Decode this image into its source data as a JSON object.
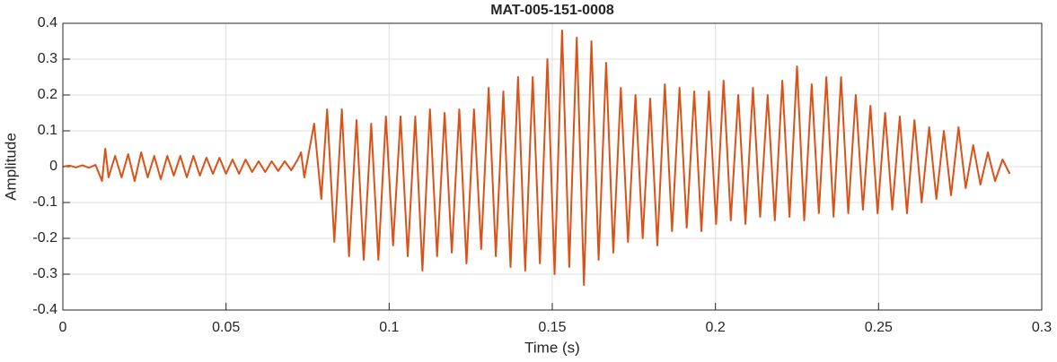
{
  "chart_data": {
    "type": "line",
    "title": "MAT-005-151-0008",
    "x_label": "Time (s)",
    "y_label": "Amplitude",
    "xlim": [
      0,
      0.3
    ],
    "xticks": [
      0,
      0.05,
      0.1,
      0.15,
      0.2,
      0.25,
      0.3
    ],
    "ylim": [
      -0.4,
      0.4
    ],
    "yticks": [
      -0.4,
      -0.3,
      -0.2,
      -0.1,
      0,
      0.1,
      0.2,
      0.3,
      0.4
    ],
    "grid": true,
    "series": [
      {
        "color": "#d95319",
        "x": [
          0,
          0.002,
          0.004,
          0.006,
          0.008,
          0.01,
          0.012,
          0.013,
          0.014,
          0.016,
          0.018,
          0.02,
          0.022,
          0.024,
          0.026,
          0.028,
          0.03,
          0.032,
          0.034,
          0.036,
          0.038,
          0.04,
          0.042,
          0.044,
          0.046,
          0.048,
          0.05,
          0.052,
          0.054,
          0.056,
          0.058,
          0.06,
          0.062,
          0.064,
          0.066,
          0.068,
          0.07,
          0.072,
          0.073,
          0.074,
          0.077,
          0.0792,
          0.081,
          0.0832,
          0.0855,
          0.0877,
          0.09,
          0.0922,
          0.0945,
          0.0967,
          0.099,
          0.1012,
          0.1035,
          0.1057,
          0.108,
          0.1102,
          0.1125,
          0.1147,
          0.117,
          0.1192,
          0.1215,
          0.1237,
          0.126,
          0.1282,
          0.1305,
          0.1327,
          0.135,
          0.1372,
          0.1395,
          0.1417,
          0.144,
          0.1462,
          0.1485,
          0.1507,
          0.153,
          0.1552,
          0.1575,
          0.1597,
          0.162,
          0.1642,
          0.1665,
          0.1687,
          0.171,
          0.1732,
          0.1755,
          0.1777,
          0.18,
          0.1822,
          0.1845,
          0.1867,
          0.189,
          0.1912,
          0.1935,
          0.1957,
          0.198,
          0.2002,
          0.2025,
          0.2047,
          0.207,
          0.2092,
          0.2115,
          0.2137,
          0.216,
          0.2182,
          0.2205,
          0.2227,
          0.225,
          0.2272,
          0.2295,
          0.2317,
          0.234,
          0.2362,
          0.2385,
          0.2407,
          0.243,
          0.2452,
          0.2475,
          0.2497,
          0.252,
          0.2542,
          0.2565,
          0.2587,
          0.261,
          0.2632,
          0.2655,
          0.2677,
          0.27,
          0.2722,
          0.2745,
          0.2767,
          0.279,
          0.2812,
          0.2835,
          0.2857,
          0.288,
          0.2902
        ],
        "values": [
          0,
          0.003,
          -0.002,
          0.004,
          -0.003,
          0.005,
          -0.04,
          0.05,
          -0.03,
          0.03,
          -0.03,
          0.035,
          -0.04,
          0.04,
          -0.03,
          0.03,
          -0.035,
          0.03,
          -0.025,
          0.03,
          -0.03,
          0.03,
          -0.025,
          0.025,
          -0.02,
          0.025,
          -0.02,
          0.02,
          -0.02,
          0.02,
          -0.015,
          0.015,
          -0.015,
          0.015,
          -0.012,
          0.015,
          -0.01,
          0.02,
          0.04,
          -0.03,
          0.12,
          -0.09,
          0.16,
          -0.21,
          0.16,
          -0.25,
          0.13,
          -0.26,
          0.12,
          -0.26,
          0.14,
          -0.22,
          0.14,
          -0.25,
          0.14,
          -0.29,
          0.16,
          -0.25,
          0.15,
          -0.24,
          0.16,
          -0.27,
          0.16,
          -0.23,
          0.22,
          -0.25,
          0.21,
          -0.28,
          0.25,
          -0.29,
          0.25,
          -0.27,
          0.3,
          -0.3,
          0.38,
          -0.28,
          0.36,
          -0.33,
          0.35,
          -0.26,
          0.29,
          -0.24,
          0.22,
          -0.21,
          0.2,
          -0.2,
          0.19,
          -0.22,
          0.23,
          -0.18,
          0.22,
          -0.17,
          0.21,
          -0.18,
          0.21,
          -0.16,
          0.24,
          -0.15,
          0.2,
          -0.16,
          0.22,
          -0.14,
          0.2,
          -0.15,
          0.24,
          -0.14,
          0.28,
          -0.15,
          0.23,
          -0.13,
          0.25,
          -0.14,
          0.25,
          -0.13,
          0.2,
          -0.12,
          0.17,
          -0.13,
          0.15,
          -0.12,
          0.14,
          -0.13,
          0.13,
          -0.1,
          0.11,
          -0.09,
          0.1,
          -0.08,
          0.11,
          -0.06,
          0.06,
          -0.05,
          0.04,
          -0.04,
          0.02,
          -0.02
        ]
      }
    ]
  }
}
